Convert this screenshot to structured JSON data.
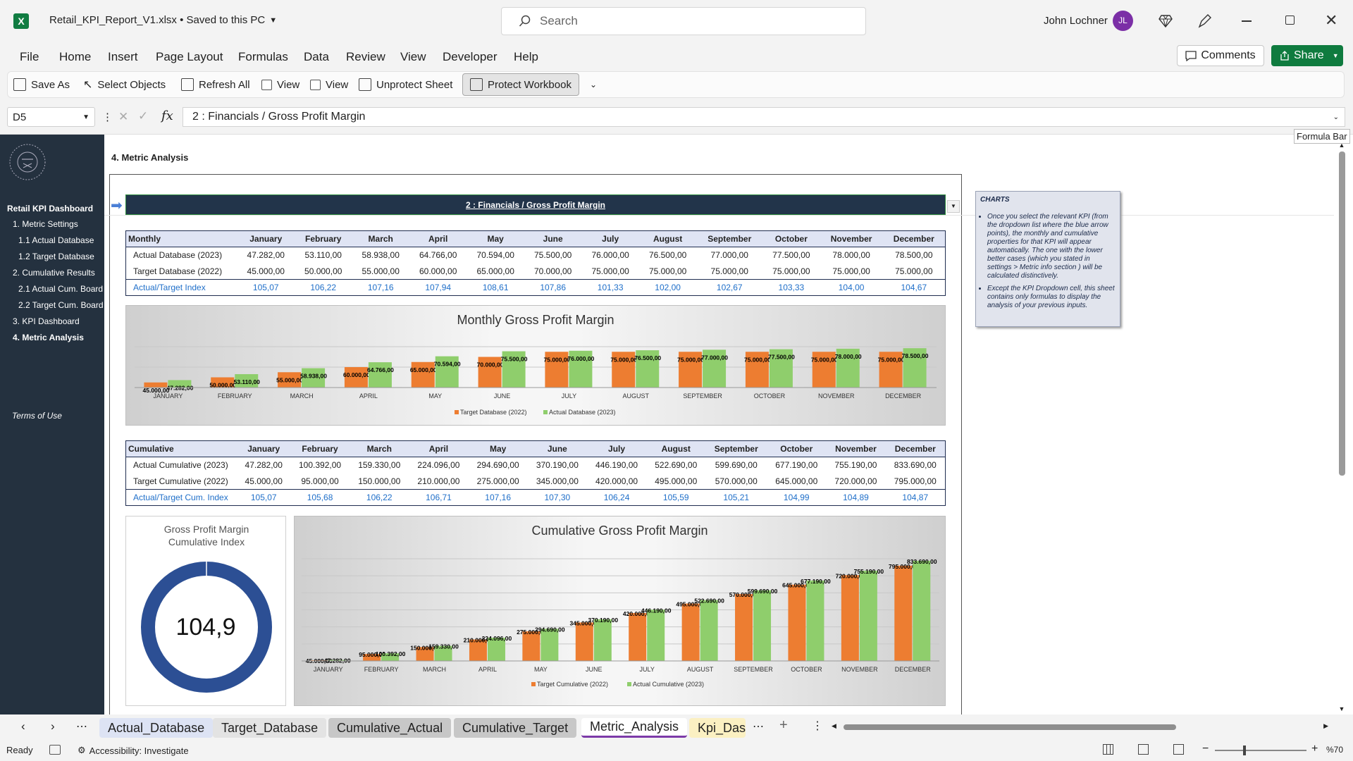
{
  "app": {
    "file_title": "Retail_KPI_Report_V1.xlsx • Saved to this PC",
    "search_placeholder": "Search",
    "user_name": "John Lochner",
    "user_initials": "JL",
    "comments_label": "Comments",
    "share_label": "Share"
  },
  "menu": [
    "File",
    "Home",
    "Insert",
    "Page Layout",
    "Formulas",
    "Data",
    "Review",
    "View",
    "Developer",
    "Help"
  ],
  "qat": {
    "save_as": "Save As",
    "select_objects": "Select Objects",
    "refresh_all": "Refresh All",
    "view1": "View",
    "view2": "View",
    "unprotect_sheet": "Unprotect Sheet",
    "protect_workbook": "Protect Workbook"
  },
  "formula_bar": {
    "name_box": "D5",
    "formula": "2 : Financials / Gross Profit Margin",
    "tooltip": "Formula Bar"
  },
  "sidebar": {
    "title": "Retail KPI Dashboard",
    "items": [
      "1. Metric Settings",
      "1.1 Actual Database",
      "1.2 Target Database",
      "2. Cumulative Results",
      "2.1 Actual Cum. Board",
      "2.2 Target Cum. Board",
      "3. KPI Dashboard",
      "4. Metric Analysis"
    ],
    "terms": "Terms of Use"
  },
  "sheet": {
    "heading": "4. Metric Analysis",
    "kpi_selected": "2 : Financials / Gross Profit Margin",
    "monthly_table": {
      "header": [
        "Monthly",
        "January",
        "February",
        "March",
        "April",
        "May",
        "June",
        "July",
        "August",
        "September",
        "October",
        "November",
        "December"
      ],
      "rows": [
        [
          "Actual Database (2023)",
          "47.282,00",
          "53.110,00",
          "58.938,00",
          "64.766,00",
          "70.594,00",
          "75.500,00",
          "76.000,00",
          "76.500,00",
          "77.000,00",
          "77.500,00",
          "78.000,00",
          "78.500,00"
        ],
        [
          "Target Database (2022)",
          "45.000,00",
          "50.000,00",
          "55.000,00",
          "60.000,00",
          "65.000,00",
          "70.000,00",
          "75.000,00",
          "75.000,00",
          "75.000,00",
          "75.000,00",
          "75.000,00",
          "75.000,00"
        ],
        [
          "Actual/Target Index",
          "105,07",
          "106,22",
          "107,16",
          "107,94",
          "108,61",
          "107,86",
          "101,33",
          "102,00",
          "102,67",
          "103,33",
          "104,00",
          "104,67"
        ]
      ]
    },
    "cumulative_table": {
      "header": [
        "Cumulative",
        "January",
        "February",
        "March",
        "April",
        "May",
        "June",
        "July",
        "August",
        "September",
        "October",
        "November",
        "December"
      ],
      "rows": [
        [
          "Actual Cumulative (2023)",
          "47.282,00",
          "100.392,00",
          "159.330,00",
          "224.096,00",
          "294.690,00",
          "370.190,00",
          "446.190,00",
          "522.690,00",
          "599.690,00",
          "677.190,00",
          "755.190,00",
          "833.690,00"
        ],
        [
          "Target Cumulative (2022)",
          "45.000,00",
          "95.000,00",
          "150.000,00",
          "210.000,00",
          "275.000,00",
          "345.000,00",
          "420.000,00",
          "495.000,00",
          "570.000,00",
          "645.000,00",
          "720.000,00",
          "795.000,00"
        ],
        [
          "Actual/Target Cum. Index",
          "105,07",
          "105,68",
          "106,22",
          "106,71",
          "107,16",
          "107,30",
          "106,24",
          "105,59",
          "105,21",
          "104,99",
          "104,89",
          "104,87"
        ]
      ]
    },
    "gauge": {
      "title": "Gross Profit Margin Cumulative Index",
      "value": "104,9"
    },
    "note": {
      "title": "CHARTS",
      "bullets": [
        "Once you select the relevant KPI (from the dropdown list where the blue arrow points), the monthly and cumulative properties for that KPI will appear automatically. The one with the lower better cases (which you stated in settings > Metric info section ) will be calculated distinctively.",
        "Except the KPI Dropdown cell, this sheet contains only formulas to display the analysis of your previous inputs."
      ]
    }
  },
  "chart_data": [
    {
      "type": "bar",
      "title": "Monthly Gross Profit Margin",
      "categories": [
        "JANUARY",
        "FEBRUARY",
        "MARCH",
        "APRIL",
        "MAY",
        "JUNE",
        "JULY",
        "AUGUST",
        "SEPTEMBER",
        "OCTOBER",
        "NOVEMBER",
        "DECEMBER"
      ],
      "series": [
        {
          "name": "Target Database (2022)",
          "color": "#ed7d31",
          "values": [
            45000,
            50000,
            55000,
            60000,
            65000,
            70000,
            75000,
            75000,
            75000,
            75000,
            75000,
            75000
          ],
          "labels": [
            "45.000,00",
            "50.000,00",
            "55.000,00",
            "60.000,00",
            "65.000,00",
            "70.000,00",
            "75.000,00",
            "75.000,00",
            "75.000,00",
            "75.000,00",
            "75.000,00",
            "75.000,00"
          ]
        },
        {
          "name": "Actual Database (2023)",
          "color": "#8fce6c",
          "values": [
            47282,
            53110,
            58938,
            64766,
            70594,
            75500,
            76000,
            76500,
            77000,
            77500,
            78000,
            78500
          ],
          "labels": [
            "47.282,00",
            "53.110,00",
            "58.938,00",
            "64.766,00",
            "70.594,00",
            "75.500,00",
            "76.000,00",
            "76.500,00",
            "77.000,00",
            "77.500,00",
            "78.000,00",
            "78.500,00"
          ]
        }
      ],
      "ylim": [
        40000,
        80000
      ],
      "legend": "bottom"
    },
    {
      "type": "bar",
      "title": "Cumulative Gross Profit Margin",
      "categories": [
        "JANUARY",
        "FEBRUARY",
        "MARCH",
        "APRIL",
        "MAY",
        "JUNE",
        "JULY",
        "AUGUST",
        "SEPTEMBER",
        "OCTOBER",
        "NOVEMBER",
        "DECEMBER"
      ],
      "series": [
        {
          "name": "Target Cumulative (2022)",
          "color": "#ed7d31",
          "values": [
            45000,
            95000,
            150000,
            210000,
            275000,
            345000,
            420000,
            495000,
            570000,
            645000,
            720000,
            795000
          ],
          "labels": [
            "45.000,00",
            "95.000,00",
            "150.000,00",
            "210.000,00",
            "275.000,00",
            "345.000,00",
            "420.000,00",
            "495.000,00",
            "570.000,00",
            "645.000,00",
            "720.000,00",
            "795.000,00"
          ]
        },
        {
          "name": "Actual Cumulative (2023)",
          "color": "#8fce6c",
          "values": [
            47282,
            100392,
            159330,
            224096,
            294690,
            370190,
            446190,
            522690,
            599690,
            677190,
            755190,
            833690
          ],
          "labels": [
            "47.282,00",
            "100.392,00",
            "159.330,00",
            "224.096,00",
            "294.690,00",
            "370.190,00",
            "446.190,00",
            "522.690,00",
            "599.690,00",
            "677.190,00",
            "755.190,00",
            "833.690,00"
          ]
        }
      ],
      "ylim": [
        40000,
        850000
      ],
      "legend": "bottom"
    }
  ],
  "sheet_tabs": [
    {
      "label": "Actual_Database",
      "bg": "#dde3f4"
    },
    {
      "label": "Target_Database",
      "bg": "#e3e3e3"
    },
    {
      "label": "Cumulative_Actual",
      "bg": "#c7c7c7"
    },
    {
      "label": "Cumulative_Target",
      "bg": "#c7c7c7"
    },
    {
      "label": "Metric_Analysis",
      "bg": "#ffffff"
    },
    {
      "label": "Kpi_Dash",
      "bg": "#fbf0c2"
    }
  ],
  "status": {
    "ready": "Ready",
    "accessibility": "Accessibility: Investigate",
    "zoom": "%70"
  }
}
